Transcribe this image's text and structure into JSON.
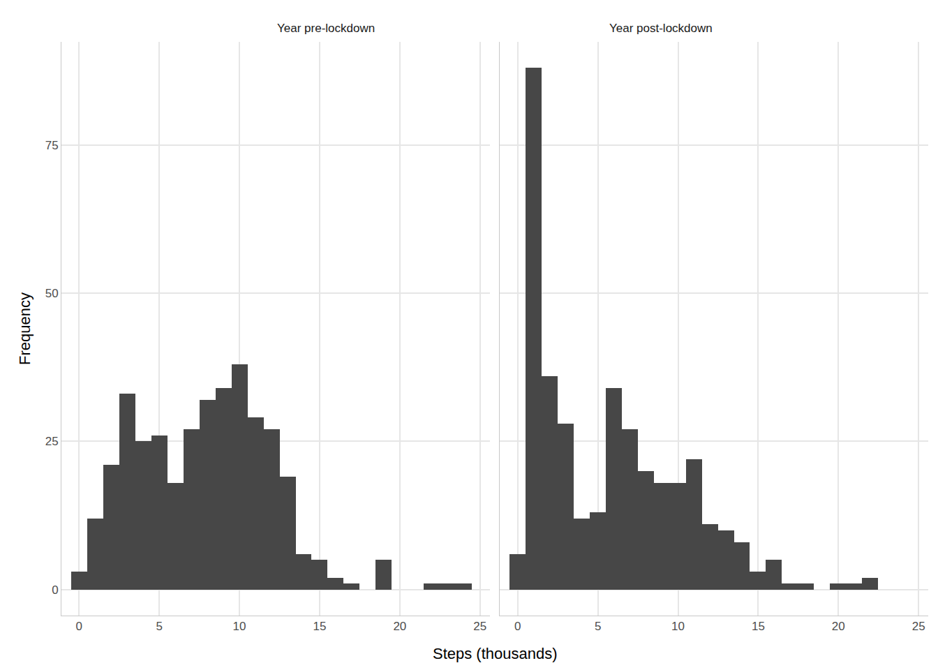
{
  "chart_data": [
    {
      "type": "histogram",
      "title": "Year pre-lockdown",
      "x_label": "Steps (thousands)",
      "y_label": "Frequency",
      "bins": [
        -0.5,
        0.5,
        1.5,
        2.5,
        3.5,
        4.5,
        5.5,
        6.5,
        7.5,
        8.5,
        9.5,
        10.5,
        11.5,
        12.5,
        13.5,
        14.5,
        15.5,
        16.5,
        17.5,
        18.5,
        19.5,
        20.5,
        21.5,
        22.5,
        23.5,
        24.5
      ],
      "values": [
        3,
        12,
        21,
        33,
        25,
        26,
        18,
        27,
        32,
        34,
        38,
        29,
        27,
        19,
        6,
        5,
        2,
        1,
        0,
        5,
        0,
        0,
        1,
        1,
        1
      ],
      "color": "#474747",
      "xlim": [
        -1.1,
        25.6
      ],
      "ylim": [
        -4.4,
        92.4
      ],
      "xticks": [
        0,
        5,
        10,
        15,
        20,
        25
      ],
      "yticks": [
        0,
        25,
        50,
        75
      ],
      "grid": true
    },
    {
      "type": "histogram",
      "title": "Year post-lockdown",
      "bins": [
        -0.5,
        0.5,
        1.5,
        2.5,
        3.5,
        4.5,
        5.5,
        6.5,
        7.5,
        8.5,
        9.5,
        10.5,
        11.5,
        12.5,
        13.5,
        14.5,
        15.5,
        16.5,
        17.5,
        18.5,
        19.5,
        20.5,
        21.5,
        22.5
      ],
      "values": [
        6,
        88,
        36,
        28,
        12,
        13,
        34,
        27,
        20,
        18,
        18,
        22,
        11,
        10,
        8,
        3,
        5,
        1,
        1,
        0,
        1,
        1,
        2
      ],
      "color": "#474747",
      "xlim": [
        -1.1,
        25.6
      ],
      "ylim": [
        -4.4,
        92.4
      ],
      "xticks": [
        0,
        5,
        10,
        15,
        20,
        25
      ],
      "yticks": [
        0,
        25,
        50,
        75
      ],
      "grid": true
    }
  ]
}
